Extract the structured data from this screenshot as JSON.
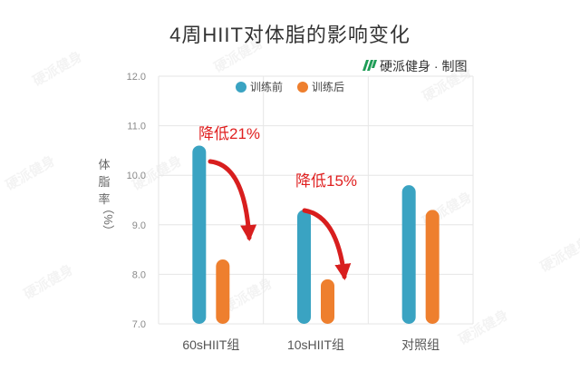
{
  "chart_data": {
    "type": "bar",
    "title": "4周HIIT对体脂的影响变化",
    "ylabel": "体脂率（%）",
    "ylabel_chars": [
      "体",
      "脂",
      "率",
      "（%）"
    ],
    "categories": [
      "60sHIIT组",
      "10sHIIT组",
      "对照组"
    ],
    "series": [
      {
        "name": "训练前",
        "color": "#3aa3c2",
        "values": [
          10.6,
          9.3,
          9.8
        ]
      },
      {
        "name": "训练后",
        "color": "#ee7f2e",
        "values": [
          8.3,
          7.9,
          9.3
        ]
      }
    ],
    "ylim": [
      7.0,
      12.0
    ],
    "yticks": [
      "7.0",
      "8.0",
      "9.0",
      "10.0",
      "11.0",
      "12.0"
    ],
    "grid": true,
    "legend": "top-center",
    "annotations": [
      {
        "text": "降低21%",
        "category": "60sHIIT组"
      },
      {
        "text": "降低15%",
        "category": "10sHIIT组"
      }
    ],
    "annotation_color": "#e02020"
  },
  "credit": {
    "logo_icon": "hand-logo-icon",
    "logo_color": "#1f9d57",
    "text": "硬派健身 · 制图"
  },
  "watermark_text": "硬派健身"
}
